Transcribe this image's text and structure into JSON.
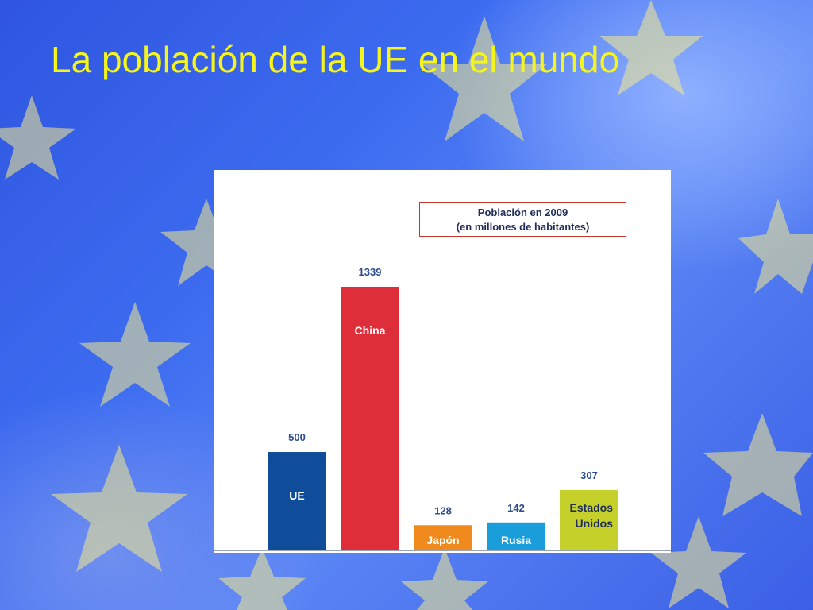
{
  "slide": {
    "title": "La población de la UE en el mundo"
  },
  "colors": {
    "title": "#f5f51e",
    "value_label": "#2c4d8f",
    "bar_label": "#ffffff",
    "bar_label_dark": "#1f2d5a"
  },
  "chart_data": {
    "type": "bar",
    "title": "Población en 2009",
    "subtitle": "(en millones de habitantes)",
    "categories": [
      "UE",
      "China",
      "Japón",
      "Rusia",
      "Estados Unidos"
    ],
    "category_lines": [
      [
        "UE"
      ],
      [
        "China"
      ],
      [
        "Japón"
      ],
      [
        "Rusia"
      ],
      [
        "Estados",
        "Unidos"
      ]
    ],
    "values": [
      500,
      1339,
      128,
      142,
      307
    ],
    "colors": [
      "#0f4c99",
      "#dd2e3a",
      "#f08a1c",
      "#1a9ddb",
      "#c5d12a"
    ],
    "label_colors": [
      "#ffffff",
      "#ffffff",
      "#ffffff",
      "#ffffff",
      "#1f2d5a"
    ],
    "ylim": [
      0,
      1339
    ],
    "grid": false,
    "legend": "top-right"
  }
}
